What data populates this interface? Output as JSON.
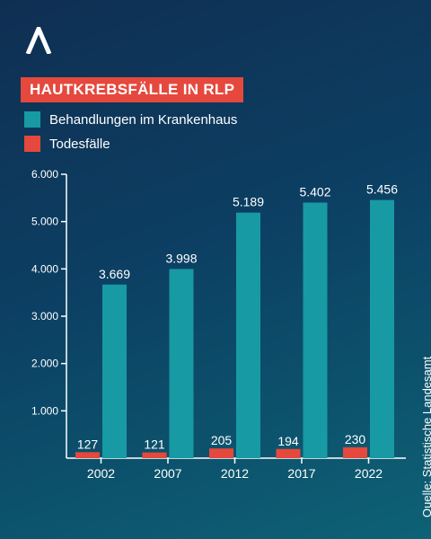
{
  "title": "HAUTKREBSFÄLLE IN RLP",
  "legend": [
    {
      "label": "Behandlungen im Krankenhaus",
      "color": "#179aa4"
    },
    {
      "label": "Todesfälle",
      "color": "#e5483d"
    }
  ],
  "source": "Quelle: Statistische Landesamt",
  "logo_icon": "arrow-up-logo-icon",
  "chart_data": {
    "type": "bar",
    "categories": [
      "2002",
      "2007",
      "2012",
      "2017",
      "2022"
    ],
    "series": [
      {
        "name": "Todesfälle",
        "values": [
          127,
          121,
          205,
          194,
          230
        ],
        "labels": [
          "127",
          "121",
          "205",
          "194",
          "230"
        ],
        "color": "#e5483d"
      },
      {
        "name": "Behandlungen im Krankenhaus",
        "values": [
          3669,
          3998,
          5189,
          5402,
          5456
        ],
        "labels": [
          "3.669",
          "3.998",
          "5.189",
          "5.402",
          "5.456"
        ],
        "color": "#179aa4"
      }
    ],
    "yticks": [
      1000,
      2000,
      3000,
      4000,
      5000,
      6000
    ],
    "ytick_labels": [
      "1.000",
      "2.000",
      "3.000",
      "4.000",
      "5.000",
      "6.000"
    ],
    "ylim": [
      0,
      6000
    ],
    "grid": false
  }
}
